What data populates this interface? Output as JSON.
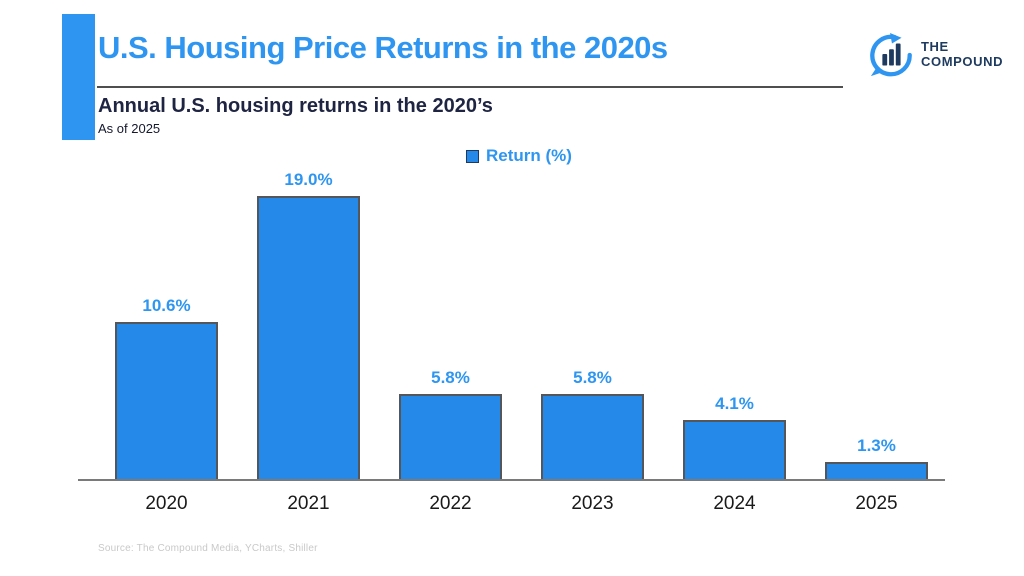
{
  "header": {
    "title": "U.S. Housing Price Returns in the 2020s",
    "subtitle": "Annual U.S. housing returns in the 2020’s",
    "as_of": "As of 2025"
  },
  "logo": {
    "line1": "THE",
    "line2": "COMPOUND",
    "icon": "compound-chart-bubble-icon"
  },
  "legend": {
    "label": "Return (%)"
  },
  "source": "Source: The Compound Media, YCharts, Shiller",
  "colors": {
    "accent_blue": "#2E96F0",
    "bar_fill": "#2589E9",
    "bar_border": "#55565A",
    "navy": "#1E2442",
    "logo_navy": "#1E3A5F",
    "axis_gray": "#7a7a7a",
    "source_gray": "#C9C9C9"
  },
  "chart_data": {
    "type": "bar",
    "title": "Annual U.S. housing returns in the 2020’s",
    "categories": [
      "2020",
      "2021",
      "2022",
      "2023",
      "2024",
      "2025"
    ],
    "values": [
      10.6,
      19.0,
      5.8,
      5.8,
      4.1,
      1.3
    ],
    "value_labels": [
      "10.6%",
      "19.0%",
      "5.8%",
      "5.8%",
      "4.1%",
      "1.3%"
    ],
    "series_name": "Return (%)",
    "xlabel": "",
    "ylabel": "Return (%)",
    "ylim": [
      0,
      20
    ],
    "grid": false,
    "legend_position": "top-center",
    "data_labels": true
  }
}
